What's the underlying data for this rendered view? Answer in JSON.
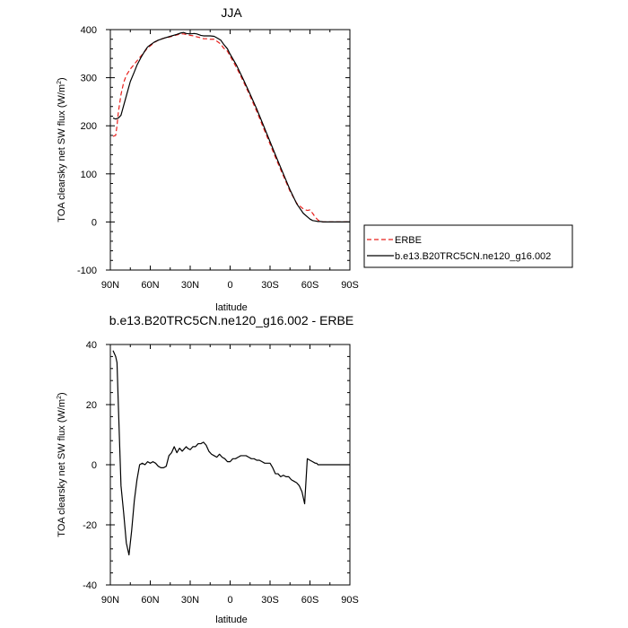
{
  "chart_data": [
    {
      "type": "line",
      "title": "JJA",
      "xlabel": "latitude",
      "ylabel_main": "TOA clearsky net SW flux (W/m",
      "ylabel_sup": "2",
      "ylabel_tail": ")",
      "xlim": [
        90,
        -90
      ],
      "ylim": [
        -100,
        400
      ],
      "xticks": [
        90,
        60,
        30,
        0,
        -30,
        -60,
        -90
      ],
      "xtick_labels": [
        "90N",
        "60N",
        "30N",
        "0",
        "30S",
        "60S",
        "90S"
      ],
      "yticks": [
        -100,
        0,
        100,
        200,
        300,
        400
      ],
      "ytick_labels": [
        "-100",
        "0",
        "100",
        "200",
        "300",
        "400"
      ],
      "legend_position": "right",
      "series": [
        {
          "name": "ERBE",
          "color": "#e8201c",
          "style": "dashed",
          "x": [
            88,
            86,
            85,
            84,
            82,
            80,
            78,
            75,
            72,
            70,
            67,
            64,
            62,
            60,
            57,
            54,
            50,
            45,
            40,
            37,
            35,
            33,
            30,
            27,
            25,
            22,
            20,
            17,
            15,
            12,
            10,
            7,
            5,
            2,
            0,
            -5,
            -10,
            -15,
            -20,
            -25,
            -30,
            -35,
            -40,
            -45,
            -50,
            -55,
            -58,
            -60,
            -62,
            -64,
            -66,
            -68,
            -70,
            -72,
            -75,
            -80,
            -85,
            -90
          ],
          "y": [
            178,
            180,
            200,
            228,
            265,
            290,
            305,
            318,
            328,
            335,
            345,
            355,
            362,
            366,
            373,
            378,
            382,
            385,
            389,
            391,
            391,
            390,
            388,
            387,
            385,
            383,
            381,
            381,
            380,
            380,
            376,
            370,
            362,
            355,
            345,
            320,
            292,
            262,
            230,
            196,
            162,
            128,
            96,
            64,
            39,
            27,
            24,
            25,
            18,
            10,
            4,
            1,
            0,
            0,
            0,
            0,
            0,
            0
          ]
        },
        {
          "name": "b.e13.B20TRC5CN.ne120_g16.002",
          "color": "#000000",
          "style": "solid",
          "x": [
            88,
            86,
            84,
            82,
            80,
            78,
            75,
            72,
            70,
            67,
            64,
            62,
            60,
            57,
            54,
            50,
            45,
            40,
            37,
            35,
            33,
            30,
            27,
            25,
            22,
            20,
            17,
            15,
            12,
            10,
            7,
            5,
            2,
            0,
            -5,
            -10,
            -15,
            -20,
            -25,
            -30,
            -35,
            -40,
            -45,
            -50,
            -55,
            -60,
            -62,
            -64,
            -66,
            -68,
            -70,
            -72,
            -75,
            -80,
            -85,
            -90
          ],
          "y": [
            216,
            214,
            216,
            222,
            242,
            262,
            292,
            312,
            326,
            342,
            356,
            364,
            368,
            374,
            378,
            382,
            386,
            390,
            393,
            394,
            392,
            391,
            392,
            391,
            388,
            387,
            387,
            387,
            386,
            383,
            378,
            370,
            360,
            349,
            325,
            296,
            266,
            235,
            201,
            167,
            133,
            100,
            67,
            38,
            18,
            6,
            3,
            2,
            1,
            1,
            0,
            0,
            0,
            0,
            0,
            0
          ]
        }
      ]
    },
    {
      "type": "line",
      "title": "b.e13.B20TRC5CN.ne120_g16.002 - ERBE",
      "xlabel": "latitude",
      "ylabel_main": "TOA clearsky net SW flux (W/m",
      "ylabel_sup": "2",
      "ylabel_tail": ")",
      "xlim": [
        90,
        -90
      ],
      "ylim": [
        -40,
        40
      ],
      "xticks": [
        90,
        60,
        30,
        0,
        -30,
        -60,
        -90
      ],
      "xtick_labels": [
        "90N",
        "60N",
        "30N",
        "0",
        "30S",
        "60S",
        "90S"
      ],
      "yticks": [
        -40,
        -20,
        0,
        20,
        40
      ],
      "ytick_labels": [
        "-40",
        "-20",
        "0",
        "20",
        "40"
      ],
      "series": [
        {
          "color": "#000000",
          "style": "solid",
          "x": [
            88,
            86,
            85,
            84,
            82,
            80,
            78,
            76,
            74,
            72,
            70,
            68,
            66,
            64,
            62,
            60,
            58,
            56,
            54,
            52,
            50,
            48,
            46,
            44,
            42,
            40,
            38,
            36,
            34,
            33,
            32,
            30,
            28,
            26,
            24,
            22,
            20,
            18,
            16,
            14,
            12,
            10,
            8,
            6,
            4,
            2,
            0,
            -2,
            -4,
            -6,
            -8,
            -10,
            -12,
            -14,
            -16,
            -18,
            -20,
            -22,
            -24,
            -26,
            -28,
            -30,
            -32,
            -34,
            -36,
            -38,
            -40,
            -42,
            -44,
            -46,
            -48,
            -50,
            -52,
            -54,
            -56,
            -58,
            -60,
            -62,
            -64,
            -65,
            -66,
            -67,
            -68,
            -70,
            -72,
            -74,
            -76,
            -78,
            -80,
            -82,
            -84,
            -86,
            -88,
            -90
          ],
          "y": [
            38,
            36,
            34,
            20,
            -7,
            -16,
            -26,
            -30,
            -22,
            -12,
            -5,
            0,
            0.5,
            0,
            1,
            0.5,
            1,
            0.5,
            -0.5,
            -1,
            -1,
            -0.5,
            3,
            4,
            6,
            4,
            5.5,
            4.5,
            5.5,
            6,
            5.5,
            5,
            6,
            6,
            7,
            7,
            7.5,
            6.5,
            4.5,
            3.5,
            3,
            2.5,
            3.5,
            2.5,
            2,
            1,
            1,
            2,
            2,
            2.5,
            3,
            3,
            3,
            2.5,
            2,
            2,
            1.5,
            1.5,
            1,
            0.5,
            0.5,
            0.5,
            -1,
            -3,
            -3,
            -4,
            -3.5,
            -4,
            -4,
            -5,
            -5.5,
            -6,
            -7,
            -9,
            -13,
            2,
            1.5,
            1,
            0.5,
            0.5,
            0,
            0,
            0,
            0,
            0,
            0,
            0,
            0,
            0,
            0,
            0,
            0,
            0,
            0
          ]
        }
      ]
    }
  ]
}
